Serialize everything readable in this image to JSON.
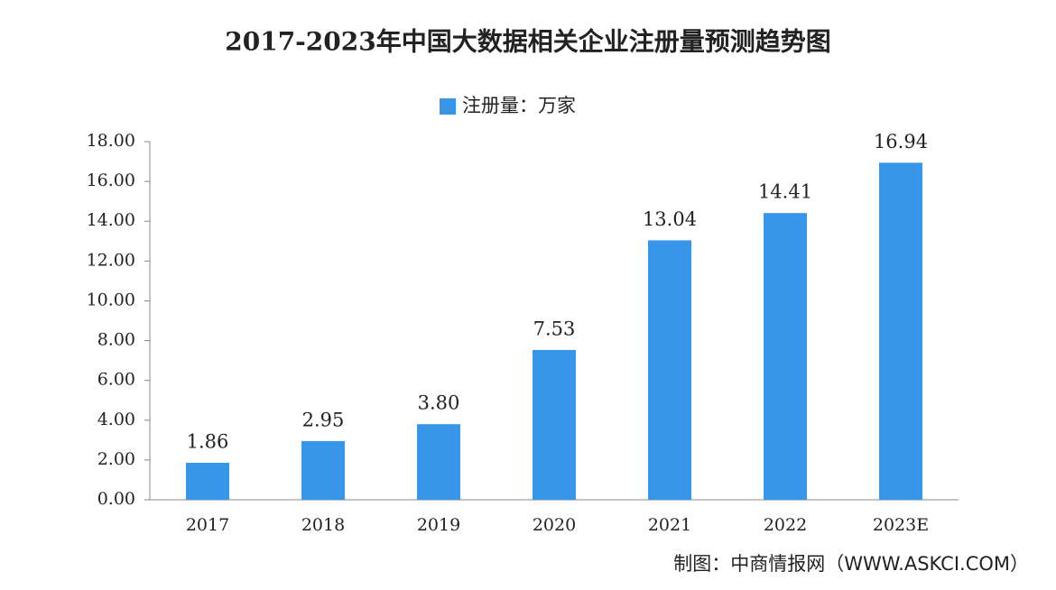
{
  "chart_data": {
    "type": "bar",
    "title": "2017-2023年中国大数据相关企业注册量预测趋势图",
    "categories": [
      "2017",
      "2018",
      "2019",
      "2020",
      "2021",
      "2022",
      "2023E"
    ],
    "series": [
      {
        "name": "注册量：万家",
        "color": "#3796e8",
        "values": [
          1.86,
          2.95,
          3.8,
          7.53,
          13.04,
          14.41,
          16.94
        ],
        "value_labels": [
          "1.86",
          "2.95",
          "3.80",
          "7.53",
          "13.04",
          "14.41",
          "16.94"
        ]
      }
    ],
    "ylim": [
      0,
      18
    ],
    "yticks": [
      {
        "value": 0,
        "label": "0.00"
      },
      {
        "value": 2,
        "label": "2.00"
      },
      {
        "value": 4,
        "label": "4.00"
      },
      {
        "value": 6,
        "label": "6.00"
      },
      {
        "value": 8,
        "label": "8.00"
      },
      {
        "value": 10,
        "label": "10.00"
      },
      {
        "value": 12,
        "label": "12.00"
      },
      {
        "value": 14,
        "label": "14.00"
      },
      {
        "value": 16,
        "label": "16.00"
      },
      {
        "value": 18,
        "label": "18.00"
      }
    ],
    "grid": false,
    "footer": "制图：中商情报网（WWW.ASKCI.COM）"
  }
}
